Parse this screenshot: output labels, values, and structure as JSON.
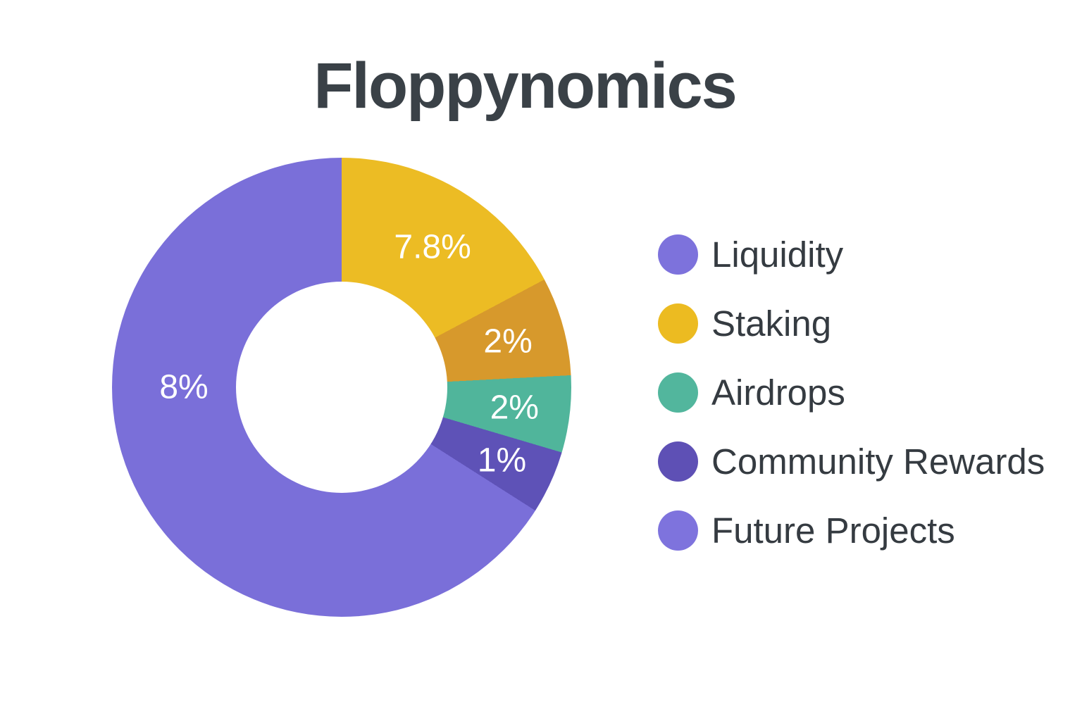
{
  "chart_data": {
    "type": "pie",
    "subtype": "donut",
    "title": "Floppynomics",
    "legend_position": "right",
    "background": "#ffffff",
    "label_color": "#ffffff",
    "segments": [
      {
        "label": "7.8%",
        "value": 7.8,
        "color": "#ecbc24",
        "color_name": "yellow",
        "start_angle": 0,
        "end_angle": 62,
        "label_angle": 33,
        "label_radius": 237
      },
      {
        "label": "2%",
        "value": 2,
        "color": "#d7992c",
        "color_name": "dark-gold",
        "start_angle": 62,
        "end_angle": 87,
        "label_angle": 74.5,
        "label_radius": 245
      },
      {
        "label": "2%",
        "value": 2,
        "color": "#50b59b",
        "color_name": "teal",
        "start_angle": 87,
        "end_angle": 106.5,
        "label_angle": 96.8,
        "label_radius": 247
      },
      {
        "label": "1%",
        "value": 1,
        "color": "#5e52b7",
        "color_name": "dark-purple",
        "start_angle": 106.5,
        "end_angle": 122.5,
        "label_angle": 114.5,
        "label_radius": 250
      },
      {
        "label": "8%",
        "value": 8,
        "color": "#7a6fd9",
        "color_name": "purple",
        "start_angle": 122.5,
        "end_angle": 360,
        "label_angle": 270,
        "label_radius": 224
      }
    ],
    "legend": [
      {
        "name": "Liquidity",
        "color": "#7d72dc"
      },
      {
        "name": "Staking",
        "color": "#ecbb21"
      },
      {
        "name": "Airdrops",
        "color": "#52b69d"
      },
      {
        "name": "Community Rewards",
        "color": "#5e50b5"
      },
      {
        "name": "Future Projects",
        "color": "#7e73dd"
      }
    ]
  }
}
